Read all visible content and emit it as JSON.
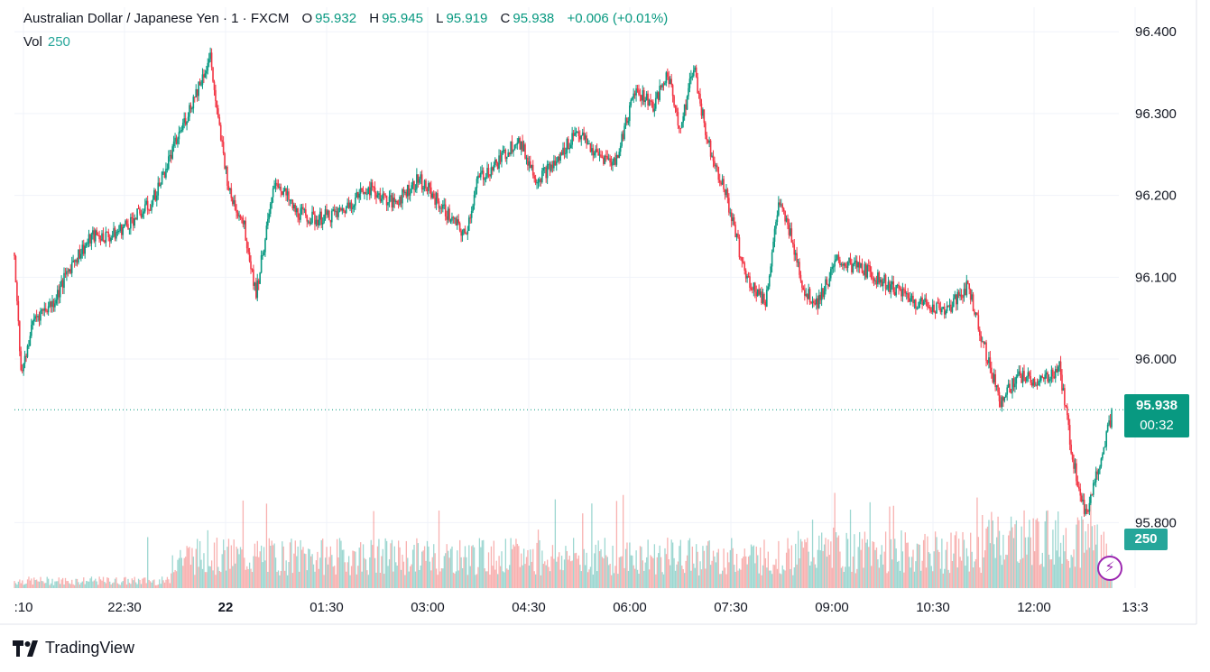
{
  "legend": {
    "symbol": "Australian Dollar / Japanese Yen · 1 · FXCM",
    "open_label": "O",
    "open": "95.932",
    "high_label": "H",
    "high": "95.945",
    "low_label": "L",
    "low": "95.919",
    "close_label": "C",
    "close": "95.938",
    "change": "+0.006 (+0.01%)"
  },
  "volume_legend": {
    "label": "Vol",
    "value": "250"
  },
  "price_tag": {
    "value": "95.938",
    "countdown": "00:32"
  },
  "volume_tag": {
    "value": "250"
  },
  "brand": {
    "name": "TradingView"
  },
  "colors": {
    "up": "#089981",
    "down": "#f23645",
    "vol_up": "#26a69a",
    "vol_down": "#ef5350",
    "accent": "#9c27b0"
  },
  "chart_data": {
    "type": "candlestick",
    "title": "Australian Dollar / Japanese Yen · 1 · FXCM",
    "interval": "1 minute",
    "y_ticks": [
      "96.400",
      "96.300",
      "96.200",
      "96.100",
      "96.000",
      "95.800"
    ],
    "y_range": [
      95.72,
      96.43
    ],
    "x_ticks": [
      ":10",
      "22:30",
      "22",
      "01:30",
      "03:00",
      "04:30",
      "06:00",
      "07:30",
      "09:00",
      "10:30",
      "12:00",
      "13:3"
    ],
    "last_price": 95.938,
    "price_path": [
      [
        0,
        96.13
      ],
      [
        5,
        95.98
      ],
      [
        15,
        96.05
      ],
      [
        30,
        96.07
      ],
      [
        45,
        96.12
      ],
      [
        60,
        96.15
      ],
      [
        75,
        96.15
      ],
      [
        90,
        96.17
      ],
      [
        105,
        96.19
      ],
      [
        120,
        96.25
      ],
      [
        135,
        96.31
      ],
      [
        150,
        96.37
      ],
      [
        155,
        96.3
      ],
      [
        165,
        96.2
      ],
      [
        175,
        96.17
      ],
      [
        185,
        96.08
      ],
      [
        190,
        96.13
      ],
      [
        200,
        96.22
      ],
      [
        215,
        96.18
      ],
      [
        230,
        96.17
      ],
      [
        250,
        96.18
      ],
      [
        270,
        96.21
      ],
      [
        290,
        96.19
      ],
      [
        310,
        96.22
      ],
      [
        330,
        96.18
      ],
      [
        345,
        96.15
      ],
      [
        355,
        96.22
      ],
      [
        370,
        96.24
      ],
      [
        385,
        96.27
      ],
      [
        400,
        96.22
      ],
      [
        415,
        96.24
      ],
      [
        430,
        96.28
      ],
      [
        445,
        96.25
      ],
      [
        460,
        96.24
      ],
      [
        475,
        96.33
      ],
      [
        490,
        96.31
      ],
      [
        500,
        96.35
      ],
      [
        510,
        96.28
      ],
      [
        520,
        96.36
      ],
      [
        530,
        96.27
      ],
      [
        545,
        96.2
      ],
      [
        560,
        96.1
      ],
      [
        575,
        96.07
      ],
      [
        585,
        96.19
      ],
      [
        595,
        96.15
      ],
      [
        605,
        96.08
      ],
      [
        615,
        96.07
      ],
      [
        630,
        96.12
      ],
      [
        650,
        96.11
      ],
      [
        670,
        96.09
      ],
      [
        690,
        96.07
      ],
      [
        715,
        96.06
      ],
      [
        730,
        96.09
      ],
      [
        745,
        96.0
      ],
      [
        755,
        95.95
      ],
      [
        770,
        95.98
      ],
      [
        785,
        95.97
      ],
      [
        800,
        95.99
      ],
      [
        810,
        95.88
      ],
      [
        820,
        95.81
      ],
      [
        830,
        95.87
      ],
      [
        840,
        95.93
      ]
    ],
    "volume_range": "low at start, higher from 22:00, peaking near 12:00–13:00"
  }
}
